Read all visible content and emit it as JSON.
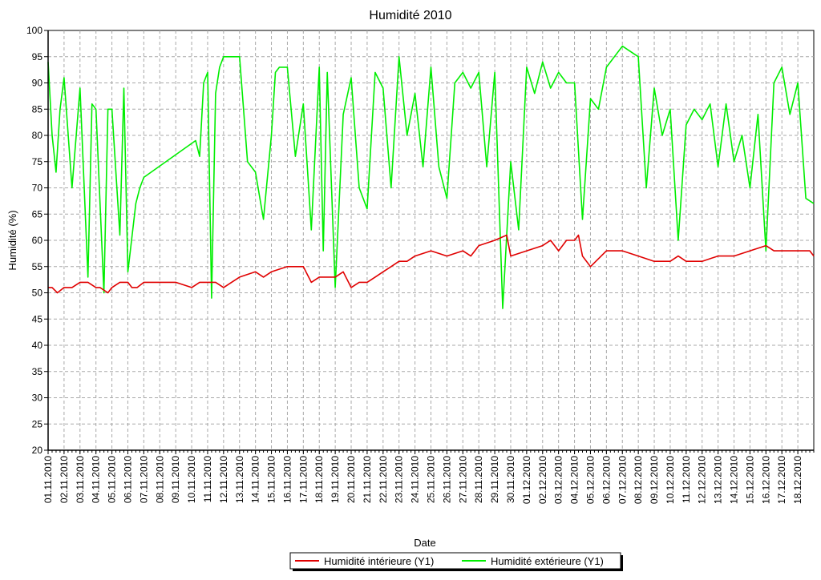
{
  "chart_data": {
    "type": "line",
    "title": "Humidité 2010",
    "xlabel": "Date",
    "ylabel": "Humidité (%)",
    "ylim": [
      20,
      100
    ],
    "yticks": [
      20,
      25,
      30,
      35,
      40,
      45,
      50,
      55,
      60,
      65,
      70,
      75,
      80,
      85,
      90,
      95,
      100
    ],
    "xlim": [
      "01.11.2010",
      "19.12.2010"
    ],
    "xticks": [
      "01.11.2010",
      "02.11.2010",
      "03.11.2010",
      "04.11.2010",
      "05.11.2010",
      "06.11.2010",
      "07.11.2010",
      "08.11.2010",
      "09.11.2010",
      "10.11.2010",
      "11.11.2010",
      "12.11.2010",
      "13.11.2010",
      "14.11.2010",
      "15.11.2010",
      "16.11.2010",
      "17.11.2010",
      "18.11.2010",
      "19.11.2010",
      "20.11.2010",
      "21.11.2010",
      "22.11.2010",
      "23.11.2010",
      "24.11.2010",
      "25.11.2010",
      "26.11.2010",
      "27.11.2010",
      "28.11.2010",
      "29.11.2010",
      "30.11.2010",
      "01.12.2010",
      "02.12.2010",
      "03.12.2010",
      "04.12.2010",
      "05.12.2010",
      "06.12.2010",
      "07.12.2010",
      "08.12.2010",
      "09.12.2010",
      "10.12.2010",
      "11.12.2010",
      "12.12.2010",
      "13.12.2010",
      "14.12.2010",
      "15.12.2010",
      "16.12.2010",
      "17.12.2010",
      "18.12.2010"
    ],
    "grid": true,
    "legend_position": "bottom-center",
    "series": [
      {
        "name": "Humidité intérieure (Y1)",
        "color": "#e00000",
        "x": [
          "01.11.2010",
          "01.11.2010 06:00",
          "01.11.2010 14:00",
          "02.11.2010",
          "02.11.2010 12:00",
          "03.11.2010",
          "03.11.2010 12:00",
          "04.11.2010",
          "04.11.2010 06:00",
          "04.11.2010 18:00",
          "05.11.2010",
          "05.11.2010 12:00",
          "06.11.2010",
          "06.11.2010 06:00",
          "06.11.2010 14:00",
          "07.11.2010",
          "08.11.2010",
          "09.11.2010",
          "10.11.2010",
          "10.11.2010 12:00",
          "11.11.2010",
          "11.11.2010 12:00",
          "12.11.2010",
          "12.11.2010 12:00",
          "13.11.2010",
          "14.11.2010",
          "14.11.2010 12:00",
          "15.11.2010",
          "16.11.2010",
          "17.11.2010",
          "17.11.2010 12:00",
          "18.11.2010",
          "19.11.2010",
          "19.11.2010 12:00",
          "20.11.2010",
          "20.11.2010 12:00",
          "21.11.2010",
          "21.11.2010 12:00",
          "22.11.2010",
          "22.11.2010 12:00",
          "23.11.2010",
          "23.11.2010 12:00",
          "24.11.2010",
          "25.11.2010",
          "26.11.2010",
          "27.11.2010",
          "27.11.2010 12:00",
          "28.11.2010",
          "29.11.2010",
          "29.11.2010 18:00",
          "30.11.2010",
          "01.12.2010",
          "02.12.2010",
          "02.12.2010 12:00",
          "03.12.2010",
          "03.12.2010 12:00",
          "04.12.2010",
          "04.12.2010 06:00",
          "04.12.2010 12:00",
          "05.12.2010",
          "06.12.2010",
          "07.12.2010",
          "08.12.2010",
          "09.12.2010",
          "10.12.2010",
          "10.12.2010 12:00",
          "11.12.2010",
          "11.12.2010 12:00",
          "12.12.2010",
          "13.12.2010",
          "14.12.2010",
          "15.12.2010",
          "16.12.2010",
          "16.12.2010 12:00",
          "17.12.2010",
          "18.12.2010",
          "18.12.2010 18:00",
          "19.12.2010"
        ],
        "values": [
          51,
          51,
          50,
          51,
          51,
          52,
          52,
          51,
          51,
          50,
          51,
          52,
          52,
          51,
          51,
          52,
          52,
          52,
          51,
          52,
          52,
          52,
          51,
          52,
          53,
          54,
          53,
          54,
          55,
          55,
          52,
          53,
          53,
          54,
          51,
          52,
          52,
          53,
          54,
          55,
          56,
          56,
          57,
          58,
          57,
          58,
          57,
          59,
          60,
          61,
          57,
          58,
          59,
          60,
          58,
          60,
          60,
          61,
          57,
          55,
          58,
          58,
          57,
          56,
          56,
          57,
          56,
          56,
          56,
          57,
          57,
          58,
          59,
          58,
          58,
          58,
          58,
          57
        ]
      },
      {
        "name": "Humidité extérieure (Y1)",
        "color": "#00ee00",
        "x": [
          "01.11.2010",
          "01.11.2010 06:00",
          "01.11.2010 12:00",
          "01.11.2010 18:00",
          "02.11.2010",
          "02.11.2010 12:00",
          "03.11.2010",
          "03.11.2010 12:00",
          "03.11.2010 18:00",
          "04.11.2010",
          "04.11.2010 12:00",
          "04.11.2010 18:00",
          "05.11.2010",
          "05.11.2010 12:00",
          "05.11.2010 18:00",
          "06.11.2010",
          "06.11.2010 12:00",
          "06.11.2010 18:00",
          "07.11.2010",
          "10.11.2010 06:00",
          "10.11.2010 12:00",
          "10.11.2010 18:00",
          "11.11.2010",
          "11.11.2010 06:00",
          "11.11.2010 12:00",
          "11.11.2010 18:00",
          "12.11.2010",
          "12.11.2010 12:00",
          "13.11.2010",
          "13.11.2010 12:00",
          "14.11.2010",
          "14.11.2010 12:00",
          "15.11.2010",
          "15.11.2010 06:00",
          "15.11.2010 12:00",
          "16.11.2010",
          "16.11.2010 12:00",
          "17.11.2010",
          "17.11.2010 12:00",
          "18.11.2010",
          "18.11.2010 06:00",
          "18.11.2010 12:00",
          "19.11.2010",
          "19.11.2010 12:00",
          "20.11.2010",
          "20.11.2010 12:00",
          "21.11.2010",
          "21.11.2010 12:00",
          "22.11.2010",
          "22.11.2010 12:00",
          "23.11.2010",
          "23.11.2010 12:00",
          "24.11.2010",
          "24.11.2010 12:00",
          "25.11.2010",
          "25.11.2010 12:00",
          "26.11.2010",
          "26.11.2010 12:00",
          "27.11.2010",
          "27.11.2010 12:00",
          "28.11.2010",
          "28.11.2010 12:00",
          "29.11.2010",
          "29.11.2010 12:00",
          "30.11.2010",
          "30.11.2010 12:00",
          "01.12.2010",
          "01.12.2010 12:00",
          "02.12.2010",
          "02.12.2010 12:00",
          "03.12.2010",
          "03.12.2010 12:00",
          "04.12.2010",
          "04.12.2010 12:00",
          "05.12.2010",
          "05.12.2010 12:00",
          "06.12.2010",
          "06.12.2010 12:00",
          "07.12.2010",
          "07.12.2010 12:00",
          "08.12.2010",
          "08.12.2010 12:00",
          "09.12.2010",
          "09.12.2010 12:00",
          "10.12.2010",
          "10.12.2010 12:00",
          "11.12.2010",
          "11.12.2010 12:00",
          "12.12.2010",
          "12.12.2010 12:00",
          "13.12.2010",
          "13.12.2010 12:00",
          "14.12.2010",
          "14.12.2010 12:00",
          "15.12.2010",
          "15.12.2010 12:00",
          "16.12.2010",
          "16.12.2010 12:00",
          "17.12.2010",
          "17.12.2010 12:00",
          "18.12.2010",
          "18.12.2010 12:00",
          "19.12.2010"
        ],
        "values": [
          94,
          80,
          73,
          85,
          91,
          70,
          89,
          53,
          86,
          85,
          50,
          85,
          85,
          61,
          89,
          54,
          67,
          70,
          72,
          79,
          76,
          90,
          92,
          49,
          88,
          93,
          95,
          95,
          95,
          75,
          73,
          64,
          80,
          92,
          93,
          93,
          76,
          86,
          62,
          93,
          58,
          92,
          51,
          84,
          91,
          70,
          66,
          92,
          89,
          70,
          95,
          80,
          88,
          74,
          93,
          74,
          68,
          90,
          92,
          89,
          92,
          74,
          92,
          47,
          75,
          62,
          93,
          88,
          94,
          89,
          92,
          90,
          90,
          64,
          87,
          85,
          93,
          95,
          97,
          96,
          95,
          70,
          89,
          80,
          85,
          60,
          82,
          85,
          83,
          86,
          74,
          86,
          75,
          80,
          70,
          84,
          58,
          90,
          93,
          84,
          90,
          68,
          67
        ]
      }
    ]
  }
}
